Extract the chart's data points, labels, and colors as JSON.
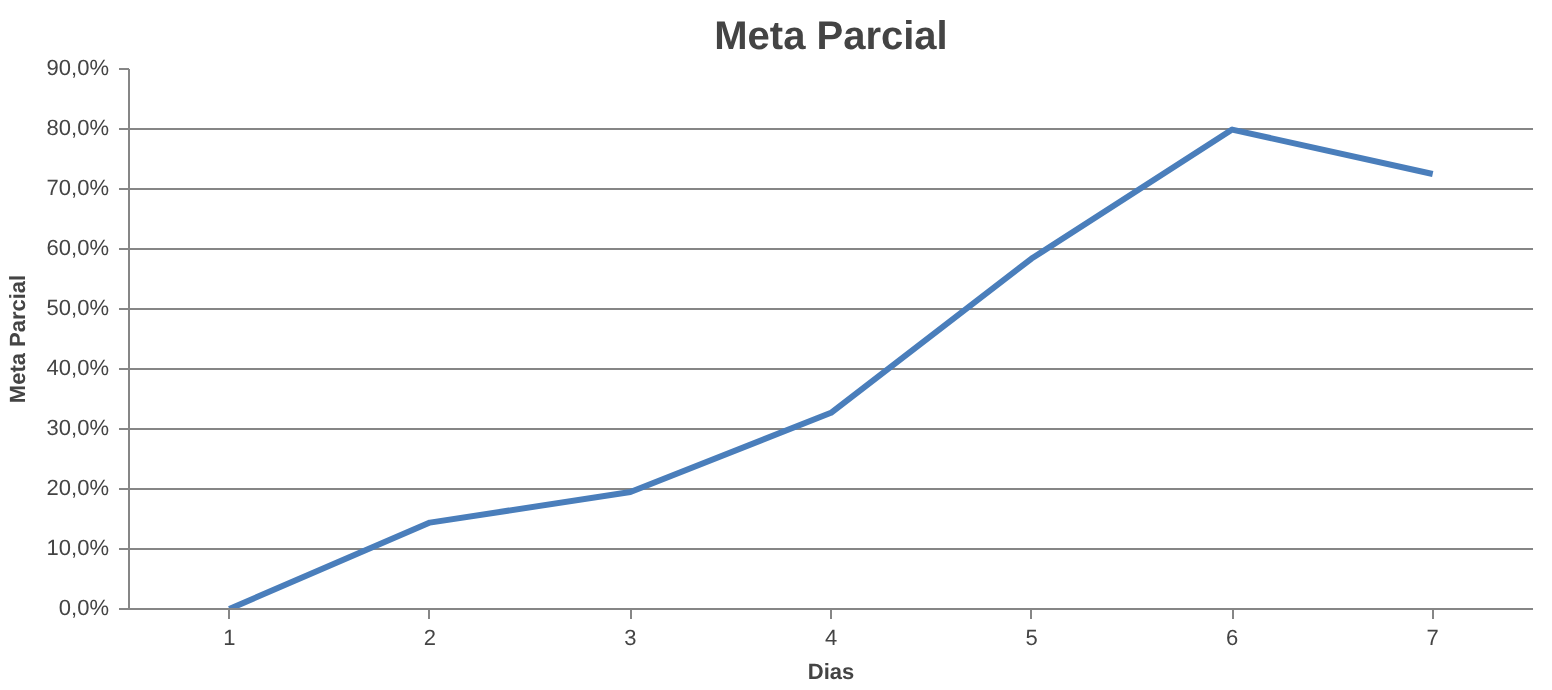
{
  "chart_data": {
    "type": "line",
    "title": "Meta Parcial",
    "xlabel": "Dias",
    "ylabel": "Meta Parcial",
    "categories": [
      "1",
      "2",
      "3",
      "4",
      "5",
      "6",
      "7"
    ],
    "series": [
      {
        "color": "#4a7ebb",
        "values": [
          0,
          14.4,
          19.5,
          32.7,
          58.4,
          79.9,
          72.5
        ]
      }
    ],
    "ylim": [
      0,
      90
    ],
    "yticks": [
      {
        "value": 0,
        "label": "0,0%"
      },
      {
        "value": 10,
        "label": "10,0%"
      },
      {
        "value": 20,
        "label": "20,0%"
      },
      {
        "value": 30,
        "label": "30,0%"
      },
      {
        "value": 40,
        "label": "40,0%"
      },
      {
        "value": 50,
        "label": "50,0%"
      },
      {
        "value": 60,
        "label": "60,0%"
      },
      {
        "value": 70,
        "label": "70,0%"
      },
      {
        "value": 80,
        "label": "80,0%"
      },
      {
        "value": 90,
        "label": "90,0%"
      }
    ],
    "grid": "y",
    "marker": "none",
    "line_style": "solid"
  }
}
